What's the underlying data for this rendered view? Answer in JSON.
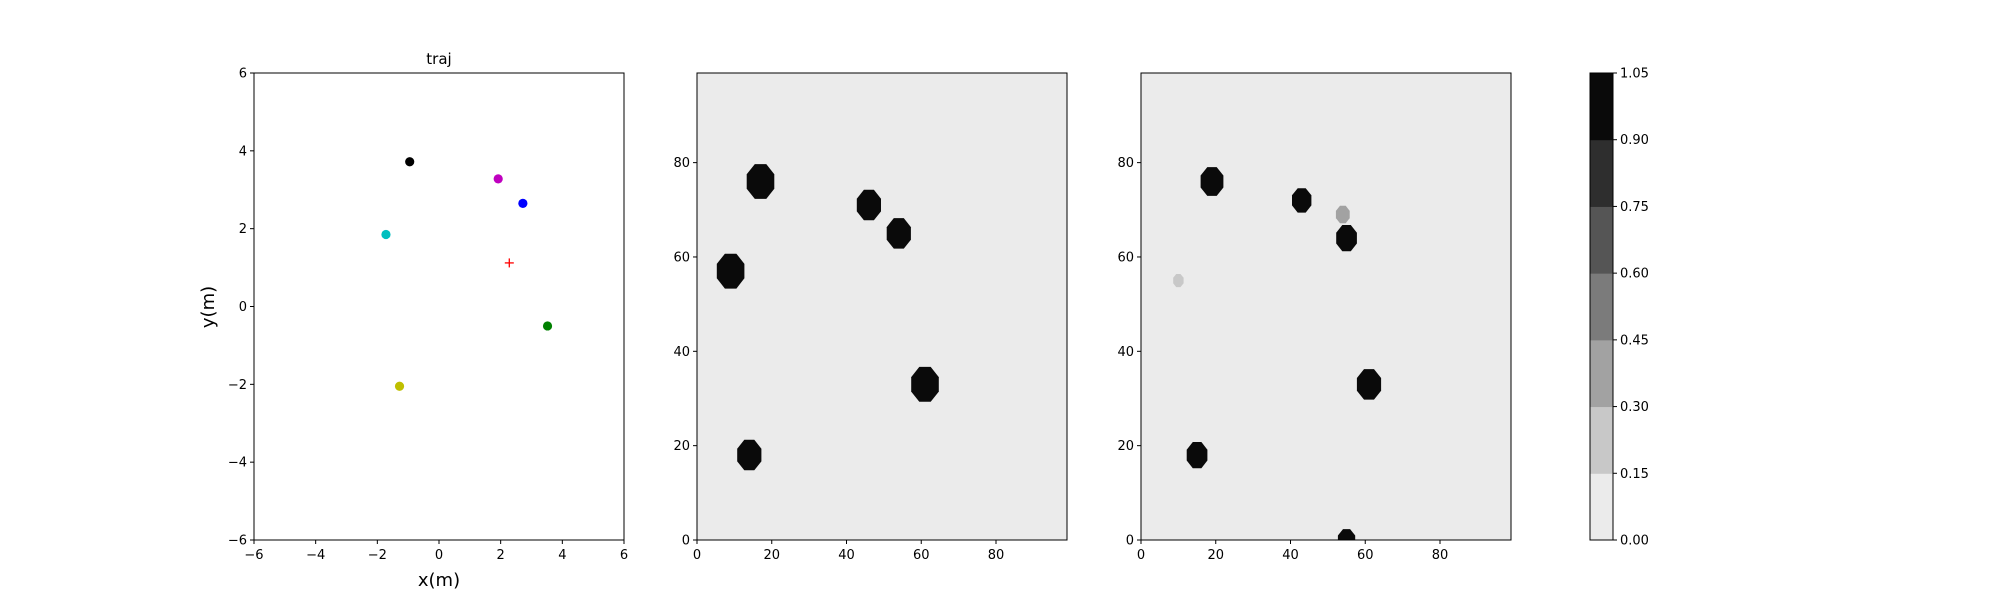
{
  "chart_data": [
    {
      "type": "scatter",
      "title": "traj",
      "xlabel": "x(m)",
      "ylabel": "y(m)",
      "xlim": [
        -6,
        6
      ],
      "ylim": [
        -6,
        6
      ],
      "xticks": [
        "−6",
        "−4",
        "−2",
        "0",
        "2",
        "4",
        "6"
      ],
      "yticks": [
        "−6",
        "−4",
        "−2",
        "0",
        "2",
        "4",
        "6"
      ],
      "grid": false,
      "points": [
        {
          "x": -0.95,
          "y": 3.72,
          "color": "#000000",
          "marker": "circle"
        },
        {
          "x": 1.92,
          "y": 3.28,
          "color": "#bf00bf",
          "marker": "circle"
        },
        {
          "x": 2.72,
          "y": 2.65,
          "color": "#0000ff",
          "marker": "circle"
        },
        {
          "x": -1.72,
          "y": 1.85,
          "color": "#00bfbf",
          "marker": "circle"
        },
        {
          "x": 2.28,
          "y": 1.12,
          "color": "#ff0000",
          "marker": "plus"
        },
        {
          "x": 3.52,
          "y": -0.5,
          "color": "#008000",
          "marker": "circle"
        },
        {
          "x": -1.28,
          "y": -2.05,
          "color": "#bfbf00",
          "marker": "circle"
        }
      ]
    },
    {
      "type": "heatmap",
      "xlim": [
        0,
        99
      ],
      "ylim": [
        0,
        99
      ],
      "xticks": [
        "0",
        "20",
        "40",
        "60",
        "80"
      ],
      "yticks": [
        "0",
        "20",
        "40",
        "60",
        "80"
      ],
      "background_value": 0.07,
      "blobs": [
        {
          "x": 17,
          "y": 76,
          "r": 4,
          "value": 1.0
        },
        {
          "x": 46,
          "y": 71,
          "r": 3.5,
          "value": 1.0
        },
        {
          "x": 54,
          "y": 65,
          "r": 3.5,
          "value": 1.0
        },
        {
          "x": 9,
          "y": 57,
          "r": 4,
          "value": 1.0
        },
        {
          "x": 61,
          "y": 33,
          "r": 4,
          "value": 1.0
        },
        {
          "x": 14,
          "y": 18,
          "r": 3.5,
          "value": 1.0
        }
      ]
    },
    {
      "type": "heatmap",
      "xlim": [
        0,
        99
      ],
      "ylim": [
        0,
        99
      ],
      "xticks": [
        "0",
        "20",
        "40",
        "60",
        "80"
      ],
      "yticks": [
        "0",
        "20",
        "40",
        "60",
        "80"
      ],
      "background_value": 0.07,
      "blobs": [
        {
          "x": 19,
          "y": 76,
          "r": 3.3,
          "value": 1.0
        },
        {
          "x": 43,
          "y": 72,
          "r": 2.8,
          "value": 1.0
        },
        {
          "x": 54,
          "y": 69,
          "r": 2,
          "value": 0.35
        },
        {
          "x": 55,
          "y": 64,
          "r": 3,
          "value": 1.0
        },
        {
          "x": 10,
          "y": 55,
          "r": 1.5,
          "value": 0.25
        },
        {
          "x": 61,
          "y": 33,
          "r": 3.5,
          "value": 1.0
        },
        {
          "x": 15,
          "y": 18,
          "r": 3,
          "value": 1.0
        },
        {
          "x": 55,
          "y": 0,
          "r": 2.5,
          "value": 1.0
        }
      ]
    }
  ],
  "colorbar": {
    "ticks": [
      "0.00",
      "0.15",
      "0.30",
      "0.45",
      "0.60",
      "0.75",
      "0.90",
      "1.05"
    ],
    "bands": [
      "#ebebeb",
      "#c8c8c8",
      "#a2a2a2",
      "#7b7b7b",
      "#555555",
      "#2e2e2e",
      "#0a0a0a"
    ]
  }
}
